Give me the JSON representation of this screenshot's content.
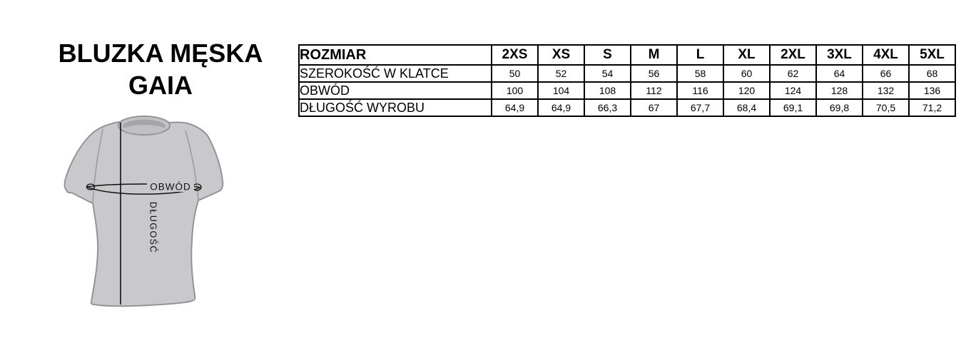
{
  "title": {
    "line1": "BLUZKA MĘSKA",
    "line2": "GAIA"
  },
  "diagram": {
    "circumference_label": "OBWÓD",
    "length_label": "DŁUGOŚĆ",
    "colors": {
      "shirt_fill": "#c9c9cd",
      "shirt_outline": "#939398",
      "collar_inner": "#a6a6aa",
      "measurement_line": "#111111"
    }
  },
  "size_table": {
    "corner_label": "ROZMIAR",
    "sizes": [
      "2XS",
      "XS",
      "S",
      "M",
      "L",
      "XL",
      "2XL",
      "3XL",
      "4XL",
      "5XL"
    ],
    "rows": [
      {
        "label": "SZEROKOŚĆ W KLATCE",
        "values": [
          "50",
          "52",
          "54",
          "56",
          "58",
          "60",
          "62",
          "64",
          "66",
          "68"
        ]
      },
      {
        "label": "OBWÓD",
        "values": [
          "100",
          "104",
          "108",
          "112",
          "116",
          "120",
          "124",
          "128",
          "132",
          "136"
        ]
      },
      {
        "label": "DŁUGOŚĆ WYROBU",
        "values": [
          "64,9",
          "64,9",
          "66,3",
          "67",
          "67,7",
          "68,4",
          "69,1",
          "69,8",
          "70,5",
          "71,2"
        ]
      }
    ]
  }
}
